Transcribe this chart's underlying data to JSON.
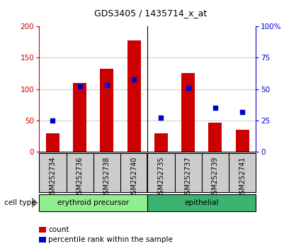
{
  "title": "GDS3405 / 1435714_x_at",
  "samples": [
    "GSM252734",
    "GSM252736",
    "GSM252738",
    "GSM252740",
    "GSM252735",
    "GSM252737",
    "GSM252739",
    "GSM252741"
  ],
  "counts": [
    30,
    110,
    132,
    178,
    30,
    126,
    46,
    35
  ],
  "percentiles": [
    25,
    52,
    53,
    58,
    27,
    51,
    35,
    32
  ],
  "groups": [
    {
      "label": "erythroid precursor",
      "start": 0,
      "end": 3,
      "color": "#90EE90"
    },
    {
      "label": "epithelial",
      "start": 4,
      "end": 7,
      "color": "#3CB371"
    }
  ],
  "bar_color": "#CC0000",
  "dot_color": "#0000CC",
  "ylim_left": [
    0,
    200
  ],
  "ylim_right": [
    0,
    100
  ],
  "yticks_left": [
    0,
    50,
    100,
    150,
    200
  ],
  "yticks_right": [
    0,
    25,
    50,
    75,
    100
  ],
  "yticklabels_right": [
    "0",
    "25",
    "50",
    "75",
    "100%"
  ],
  "grid_ticks": [
    50,
    100,
    150
  ],
  "grid_color": "#888888",
  "bar_width": 0.5,
  "label_bg_color": "#CCCCCC",
  "erythroid_color": "#99EE99",
  "epithelial_color": "#44CC44",
  "cell_type_label": "cell type",
  "legend_count_label": "count",
  "legend_pct_label": "percentile rank within the sample",
  "title_fontsize": 9,
  "tick_fontsize": 7.5,
  "label_fontsize": 7,
  "legend_fontsize": 7.5
}
